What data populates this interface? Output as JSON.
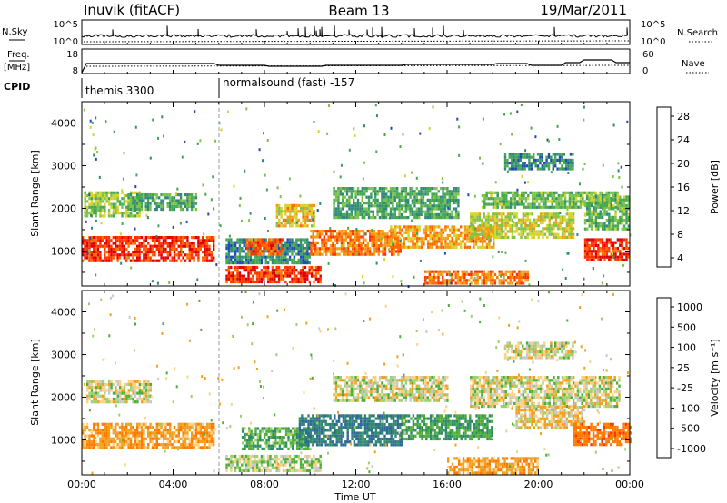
{
  "header": {
    "station": "Inuvik (fitACF)",
    "beam": "Beam 13",
    "date": "19/Mar/2011"
  },
  "panels": {
    "nsky": {
      "left_label": "N.Sky",
      "right_label": "N.Search",
      "tick_top": "10^5",
      "tick_bottom": "10^0"
    },
    "freq": {
      "left_label_1": "Freq.",
      "left_label_2": "[MHz]",
      "tick_top": "18",
      "tick_bottom": "8",
      "right_tick_top": "60",
      "right_tick_bottom": "0",
      "right_label": "Nave"
    },
    "cpid": {
      "label": "CPID",
      "mode_1": "themis 3300",
      "mode_2": "normalsound (fast) -157"
    }
  },
  "colorbars": {
    "power": {
      "label": "Power [dB]",
      "ticks": [
        "28",
        "24",
        "20",
        "16",
        "12",
        "8",
        "4"
      ],
      "colors": [
        "#0000e6",
        "#1e4bb4",
        "#2f8a7a",
        "#47a84f",
        "#7dc24a",
        "#d7d22d",
        "#f0a018",
        "#ff6a00",
        "#ff3300",
        "#e00000"
      ]
    },
    "velocity": {
      "label": "Velocity [m s⁻¹]",
      "ticks": [
        "1000",
        "500",
        "100",
        "25",
        "-25",
        "-100",
        "-500",
        "-1000"
      ],
      "colors": [
        "#2a3fb0",
        "#2f6a96",
        "#2f8a6a",
        "#4fae3a",
        "#9fd070",
        "#c8c8c8",
        "#ffd080",
        "#f0a020",
        "#ff7a00",
        "#ff3a00",
        "#e00000"
      ]
    }
  },
  "chart_data": [
    {
      "type": "heatmap",
      "title": "Power",
      "ylabel": "Slant Range [km]",
      "xlabel": "Time UT",
      "x_ticks": [
        "00:00",
        "04:00",
        "08:00",
        "12:00",
        "16:00",
        "20:00",
        "00:00"
      ],
      "y_ticks": [
        "1000",
        "2000",
        "3000",
        "4000"
      ],
      "ylim": [
        180,
        4500
      ],
      "xlim_hours": [
        0,
        24
      ],
      "colorbar_label": "Power [dB]",
      "colorbar_ticks": [
        4,
        8,
        12,
        16,
        20,
        24,
        28
      ],
      "echo_regions": [
        {
          "t0": 0.0,
          "t1": 5.8,
          "r0": 800,
          "r1": 1350,
          "level": 26
        },
        {
          "t0": 0.1,
          "t1": 2.5,
          "r0": 1850,
          "r1": 2400,
          "level": 14
        },
        {
          "t0": 2.0,
          "t1": 5.0,
          "r0": 1950,
          "r1": 2350,
          "level": 10
        },
        {
          "t0": 6.3,
          "t1": 10.5,
          "r0": 250,
          "r1": 650,
          "level": 26
        },
        {
          "t0": 6.3,
          "t1": 10.0,
          "r0": 700,
          "r1": 1300,
          "level": 8
        },
        {
          "t0": 7.2,
          "t1": 8.8,
          "r0": 900,
          "r1": 1300,
          "level": 24
        },
        {
          "t0": 8.5,
          "t1": 10.2,
          "r0": 1600,
          "r1": 2100,
          "level": 18
        },
        {
          "t0": 10.0,
          "t1": 14.0,
          "r0": 900,
          "r1": 1500,
          "level": 22
        },
        {
          "t0": 11.0,
          "t1": 16.5,
          "r0": 1800,
          "r1": 2500,
          "level": 10
        },
        {
          "t0": 13.5,
          "t1": 18.0,
          "r0": 1100,
          "r1": 1600,
          "level": 20
        },
        {
          "t0": 15.0,
          "t1": 19.5,
          "r0": 250,
          "r1": 550,
          "level": 22
        },
        {
          "t0": 17.0,
          "t1": 21.5,
          "r0": 1300,
          "r1": 1900,
          "level": 16
        },
        {
          "t0": 17.5,
          "t1": 23.5,
          "r0": 2000,
          "r1": 2400,
          "level": 12
        },
        {
          "t0": 18.5,
          "t1": 21.5,
          "r0": 2900,
          "r1": 3300,
          "level": 8
        },
        {
          "t0": 22.0,
          "t1": 24.0,
          "r0": 800,
          "r1": 1300,
          "level": 26
        },
        {
          "t0": 22.0,
          "t1": 24.0,
          "r0": 1500,
          "r1": 2300,
          "level": 12
        }
      ]
    },
    {
      "type": "heatmap",
      "title": "Velocity",
      "ylabel": "Slant Range [km]",
      "xlabel": "Time UT",
      "x_ticks": [
        "00:00",
        "04:00",
        "08:00",
        "12:00",
        "16:00",
        "20:00",
        "00:00"
      ],
      "y_ticks": [
        "1000",
        "2000",
        "3000",
        "4000"
      ],
      "ylim": [
        180,
        4500
      ],
      "xlim_hours": [
        0,
        24
      ],
      "colorbar_label": "Velocity [m s⁻¹]",
      "colorbar_ticks": [
        1000,
        500,
        100,
        25,
        -25,
        -100,
        -500,
        -1000
      ],
      "echo_regions": [
        {
          "t0": 0.0,
          "t1": 5.8,
          "r0": 850,
          "r1": 1400,
          "level": -200
        },
        {
          "t0": 0.2,
          "t1": 3.0,
          "r0": 1900,
          "r1": 2400,
          "level": 0
        },
        {
          "t0": 6.3,
          "t1": 10.5,
          "r0": 300,
          "r1": 650,
          "level": 50
        },
        {
          "t0": 7.0,
          "t1": 10.0,
          "r0": 800,
          "r1": 1300,
          "level": 200
        },
        {
          "t0": 9.5,
          "t1": 14.0,
          "r0": 900,
          "r1": 1600,
          "level": 500
        },
        {
          "t0": 11.0,
          "t1": 16.0,
          "r0": 1900,
          "r1": 2500,
          "level": 0
        },
        {
          "t0": 14.0,
          "t1": 18.0,
          "r0": 1000,
          "r1": 1600,
          "level": 250
        },
        {
          "t0": 16.0,
          "t1": 20.0,
          "r0": 250,
          "r1": 600,
          "level": -200
        },
        {
          "t0": 17.0,
          "t1": 23.5,
          "r0": 1800,
          "r1": 2500,
          "level": 0
        },
        {
          "t0": 18.5,
          "t1": 21.5,
          "r0": 2900,
          "r1": 3300,
          "level": 0
        },
        {
          "t0": 19.0,
          "t1": 22.0,
          "r0": 1300,
          "r1": 1800,
          "level": -80
        },
        {
          "t0": 21.5,
          "t1": 24.0,
          "r0": 900,
          "r1": 1400,
          "level": -400
        }
      ]
    }
  ]
}
